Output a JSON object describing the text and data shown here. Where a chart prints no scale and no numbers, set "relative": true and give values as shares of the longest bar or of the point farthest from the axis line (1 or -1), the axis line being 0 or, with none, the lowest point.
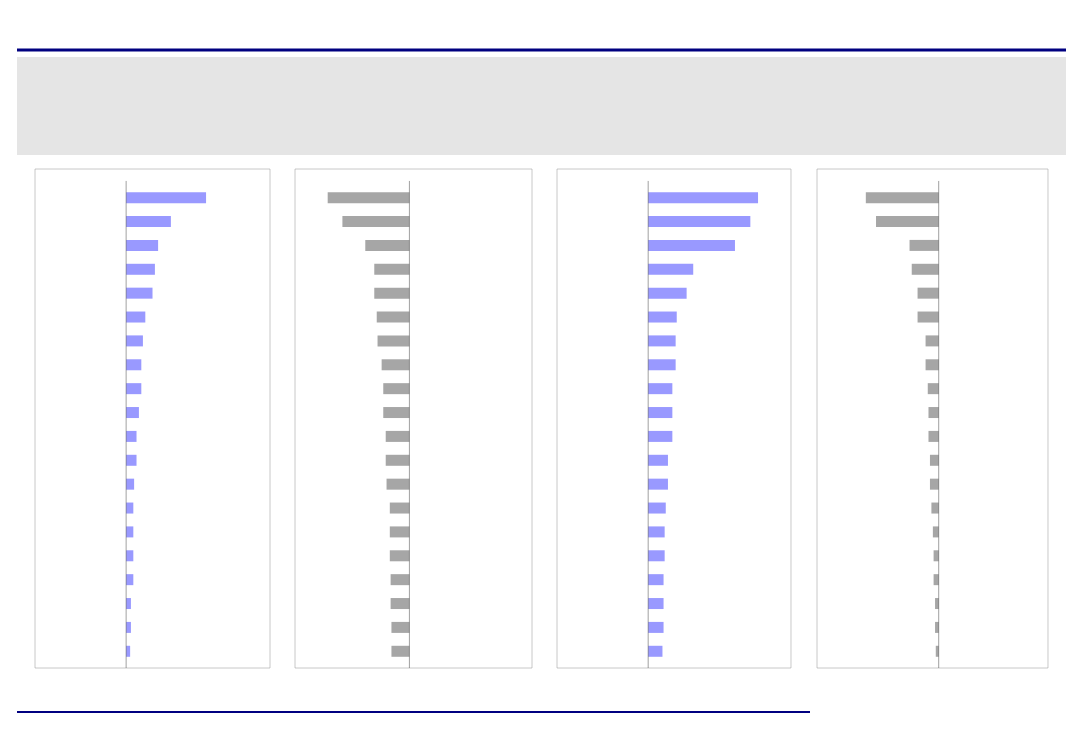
{
  "chart_data": [
    {
      "type": "bar",
      "orientation": "horizontal",
      "relative": true,
      "color": "#9999ff",
      "categories": [
        null,
        null,
        null,
        null,
        null,
        null,
        null,
        null,
        null,
        null,
        null,
        null,
        null,
        null,
        null,
        null,
        null,
        null,
        null,
        null
      ],
      "values": [
        1,
        0.56,
        0.4,
        0.36,
        0.33,
        0.24,
        0.21,
        0.19,
        0.19,
        0.16,
        0.13,
        0.13,
        0.1,
        0.09,
        0.09,
        0.09,
        0.09,
        0.06,
        0.06,
        0.05
      ]
    },
    {
      "type": "bar",
      "orientation": "horizontal",
      "relative": true,
      "color": "#a6a6a6",
      "categories": [
        null,
        null,
        null,
        null,
        null,
        null,
        null,
        null,
        null,
        null,
        null,
        null,
        null,
        null,
        null,
        null,
        null,
        null,
        null,
        null
      ],
      "values": [
        -1,
        -0.82,
        -0.54,
        -0.43,
        -0.43,
        -0.4,
        -0.39,
        -0.34,
        -0.32,
        -0.32,
        -0.29,
        -0.29,
        -0.28,
        -0.24,
        -0.24,
        -0.24,
        -0.23,
        -0.23,
        -0.22,
        -0.22
      ]
    },
    {
      "type": "bar",
      "orientation": "horizontal",
      "relative": true,
      "color": "#9999ff",
      "categories": [
        null,
        null,
        null,
        null,
        null,
        null,
        null,
        null,
        null,
        null,
        null,
        null,
        null,
        null,
        null,
        null,
        null,
        null,
        null,
        null
      ],
      "values": [
        1,
        0.93,
        0.79,
        0.41,
        0.35,
        0.26,
        0.25,
        0.25,
        0.22,
        0.22,
        0.22,
        0.18,
        0.18,
        0.16,
        0.15,
        0.15,
        0.14,
        0.14,
        0.14,
        0.13
      ]
    },
    {
      "type": "bar",
      "orientation": "horizontal",
      "relative": true,
      "color": "#a6a6a6",
      "categories": [
        null,
        null,
        null,
        null,
        null,
        null,
        null,
        null,
        null,
        null,
        null,
        null,
        null,
        null,
        null,
        null,
        null,
        null,
        null,
        null
      ],
      "values": [
        -1,
        -0.86,
        -0.4,
        -0.37,
        -0.29,
        -0.29,
        -0.18,
        -0.18,
        -0.15,
        -0.14,
        -0.14,
        -0.12,
        -0.12,
        -0.1,
        -0.08,
        -0.07,
        -0.07,
        -0.05,
        -0.05,
        -0.04
      ]
    }
  ]
}
